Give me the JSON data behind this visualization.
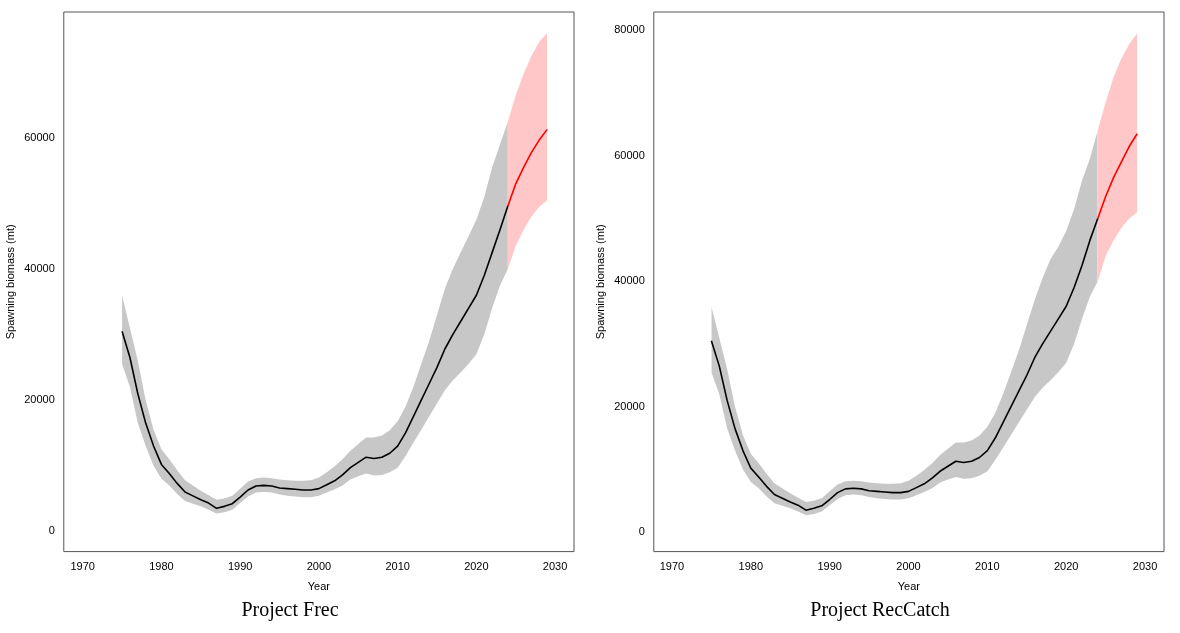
{
  "chart_data": [
    {
      "type": "line",
      "title": "Project Frec",
      "xlabel": "Year",
      "ylabel": "Spawning biomass (mt)",
      "xlim": [
        1967.6,
        2032.4
      ],
      "xticks": [
        1970,
        1980,
        1990,
        2000,
        2010,
        2020,
        2030
      ],
      "ylim": [
        -3100,
        79200
      ],
      "yticks": [
        0,
        20000,
        40000,
        60000
      ],
      "grid": false,
      "legend": false,
      "marker": "none",
      "line_style": "solid",
      "series": [
        {
          "color": "#000000",
          "x": [
            1975,
            1976,
            1977,
            1978,
            1979,
            1980,
            1981,
            1982,
            1983,
            1984,
            1985,
            1986,
            1987,
            1988,
            1989,
            1990,
            1991,
            1992,
            1993,
            1994,
            1995,
            1996,
            1997,
            1998,
            1999,
            2000,
            2001,
            2002,
            2003,
            2004,
            2005,
            2006,
            2007,
            2008,
            2009,
            2010,
            2011,
            2012,
            2013,
            2014,
            2015,
            2016,
            2017,
            2018,
            2019,
            2020,
            2021,
            2022,
            2023,
            2024
          ],
          "values": [
            30500,
            26500,
            21000,
            16500,
            13000,
            10200,
            8800,
            7300,
            6000,
            5400,
            4800,
            4300,
            3500,
            3800,
            4200,
            5200,
            6300,
            6900,
            7000,
            6900,
            6600,
            6500,
            6400,
            6300,
            6300,
            6500,
            7100,
            7700,
            8600,
            9700,
            10500,
            11300,
            11100,
            11300,
            11900,
            13000,
            15000,
            17500,
            20000,
            22500,
            25000,
            27800,
            30000,
            32000,
            34000,
            36000,
            39000,
            42500,
            46000,
            49600
          ],
          "lower": [
            25500,
            22000,
            16500,
            13000,
            10000,
            8000,
            7000,
            5700,
            4600,
            4200,
            3800,
            3300,
            2700,
            2900,
            3300,
            4300,
            5300,
            5900,
            6000,
            5900,
            5600,
            5400,
            5300,
            5200,
            5200,
            5400,
            5900,
            6400,
            7000,
            7900,
            8400,
            8800,
            8500,
            8600,
            9000,
            9700,
            11500,
            13500,
            15500,
            17500,
            19500,
            21500,
            23000,
            24200,
            25500,
            27000,
            30000,
            34000,
            37500,
            40000
          ],
          "upper": [
            36000,
            31000,
            26000,
            20000,
            15500,
            12500,
            11000,
            9300,
            7800,
            7000,
            6200,
            5500,
            4800,
            5000,
            5400,
            6500,
            7600,
            8100,
            8200,
            8100,
            7900,
            7800,
            7700,
            7700,
            7800,
            8200,
            9000,
            9900,
            11000,
            12300,
            13300,
            14300,
            14300,
            14600,
            15400,
            16800,
            19000,
            22000,
            25500,
            29000,
            33000,
            37000,
            40000,
            42500,
            45000,
            47500,
            51000,
            55500,
            59000,
            62500
          ]
        },
        {
          "color": "#ff0000",
          "x": [
            2024,
            2025,
            2026,
            2027,
            2028,
            2029
          ],
          "values": [
            49600,
            53000,
            55500,
            57800,
            59700,
            61300
          ],
          "lower": [
            40000,
            43500,
            46000,
            48000,
            49500,
            50500
          ],
          "upper": [
            62500,
            66500,
            69800,
            72500,
            74700,
            76000
          ]
        }
      ]
    },
    {
      "type": "line",
      "title": "Project RecCatch",
      "xlabel": "Year",
      "ylabel": "Spawning biomass (mt)",
      "xlim": [
        1967.7,
        2032.4
      ],
      "xticks": [
        1970,
        1980,
        1990,
        2000,
        2010,
        2020,
        2030
      ],
      "ylim": [
        -3100,
        82900
      ],
      "yticks": [
        0,
        20000,
        40000,
        60000,
        80000
      ],
      "grid": false,
      "legend": false,
      "marker": "none",
      "line_style": "solid",
      "series": [
        {
          "color": "#000000",
          "x": [
            1975,
            1976,
            1977,
            1978,
            1979,
            1980,
            1981,
            1982,
            1983,
            1984,
            1985,
            1986,
            1987,
            1988,
            1989,
            1990,
            1991,
            1992,
            1993,
            1994,
            1995,
            1996,
            1997,
            1998,
            1999,
            2000,
            2001,
            2002,
            2003,
            2004,
            2005,
            2006,
            2007,
            2008,
            2009,
            2010,
            2011,
            2012,
            2013,
            2014,
            2015,
            2016,
            2017,
            2018,
            2019,
            2020,
            2021,
            2022,
            2023,
            2024
          ],
          "values": [
            30500,
            26500,
            21000,
            16500,
            13000,
            10200,
            8800,
            7300,
            6000,
            5400,
            4800,
            4300,
            3500,
            3800,
            4200,
            5200,
            6300,
            6900,
            7000,
            6900,
            6600,
            6500,
            6400,
            6300,
            6300,
            6500,
            7100,
            7700,
            8600,
            9700,
            10500,
            11300,
            11100,
            11300,
            11900,
            13000,
            15000,
            17500,
            20000,
            22500,
            25000,
            27800,
            30000,
            32000,
            34000,
            36000,
            39000,
            42500,
            46500,
            50000
          ],
          "lower": [
            25500,
            22000,
            16500,
            13000,
            10000,
            8000,
            7000,
            5700,
            4600,
            4200,
            3800,
            3300,
            2700,
            2900,
            3300,
            4300,
            5300,
            5900,
            6000,
            5900,
            5600,
            5400,
            5300,
            5200,
            5200,
            5400,
            5900,
            6400,
            7000,
            7900,
            8400,
            8800,
            8500,
            8600,
            9000,
            9700,
            11500,
            13500,
            15500,
            17500,
            19500,
            21500,
            23000,
            24200,
            25500,
            27000,
            30000,
            34000,
            37500,
            40000
          ],
          "upper": [
            36000,
            31000,
            26000,
            20000,
            15500,
            12500,
            11000,
            9300,
            7800,
            7000,
            6200,
            5500,
            4800,
            5000,
            5400,
            6500,
            7600,
            8100,
            8200,
            8100,
            7900,
            7800,
            7700,
            7700,
            7800,
            8200,
            9000,
            9900,
            11000,
            12300,
            13300,
            14300,
            14300,
            14600,
            15400,
            16800,
            19000,
            22000,
            25500,
            29000,
            33000,
            37000,
            40500,
            43500,
            45500,
            48000,
            51500,
            56000,
            59500,
            64000
          ]
        },
        {
          "color": "#ff0000",
          "x": [
            2024,
            2025,
            2026,
            2027,
            2028,
            2029
          ],
          "values": [
            50000,
            53500,
            56500,
            59000,
            61500,
            63500
          ],
          "lower": [
            40000,
            44000,
            46500,
            48500,
            50000,
            51000
          ],
          "upper": [
            64000,
            68500,
            72500,
            75500,
            77800,
            79500
          ]
        }
      ]
    }
  ]
}
